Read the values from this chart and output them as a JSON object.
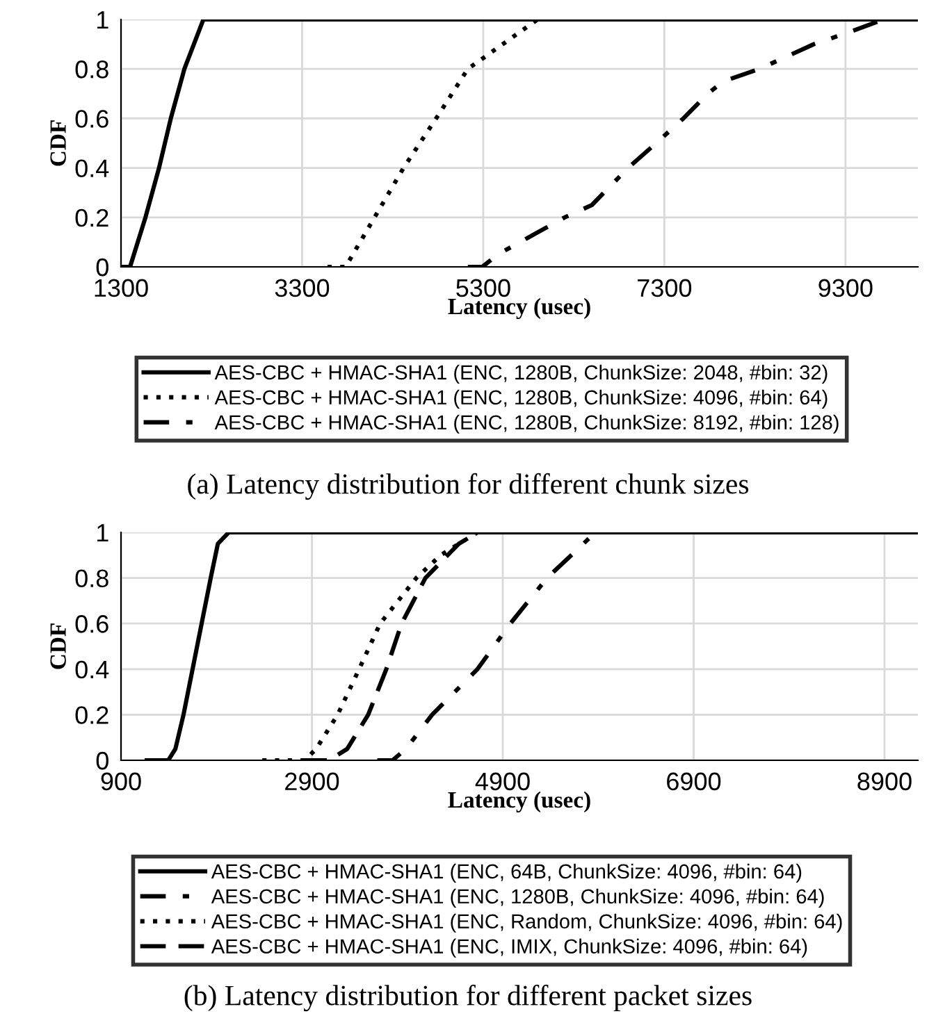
{
  "chart_data": [
    {
      "type": "line",
      "xlabel": "Latency (usec)",
      "ylabel": "CDF",
      "annotations": [
        "(a) Latency distribution for different chunk sizes"
      ],
      "xlim": [
        1300,
        10100
      ],
      "xticks": [
        1300,
        3300,
        5300,
        7300,
        9300
      ],
      "ylim": [
        0,
        1
      ],
      "yticks": [
        0,
        0.2,
        0.4,
        0.6,
        0.8,
        1
      ],
      "grid": true,
      "legend": "bottom",
      "marker": "none",
      "series": [
        {
          "name": "AES-CBC + HMAC-SHA1 (ENC, 1280B, ChunkSize: 2048, #bin: 32)",
          "color": "#000000",
          "line_style": "solid",
          "x": [
            1300,
            1400,
            1570,
            1720,
            1850,
            2000,
            2210,
            10100
          ],
          "values": [
            0,
            0,
            0.2,
            0.4,
            0.6,
            0.8,
            1,
            1
          ]
        },
        {
          "name": "AES-CBC + HMAC-SHA1 (ENC, 1280B, ChunkSize: 4096, #bin: 64)",
          "color": "#000000",
          "line_style": "dotted",
          "x": [
            3580,
            3780,
            4100,
            4420,
            4780,
            5130,
            5900,
            10100
          ],
          "values": [
            0,
            0,
            0.2,
            0.4,
            0.6,
            0.8,
            1,
            1
          ]
        },
        {
          "name": "AES-CBC + HMAC-SHA1 (ENC, 1280B, ChunkSize: 8192, #bin: 128)",
          "color": "#000000",
          "line_style": "dashdot",
          "x": [
            5130,
            5290,
            5460,
            6200,
            6500,
            6900,
            7210,
            7510,
            7780,
            7950,
            8350,
            8950,
            9350,
            9720,
            10100
          ],
          "values": [
            0,
            0,
            0.05,
            0.2,
            0.25,
            0.4,
            0.5,
            0.6,
            0.7,
            0.75,
            0.8,
            0.9,
            0.95,
            1,
            1
          ]
        }
      ]
    },
    {
      "type": "line",
      "xlabel": "Latency (usec)",
      "ylabel": "CDF",
      "annotations": [
        "(b) Latency distribution for different packet sizes"
      ],
      "xlim": [
        900,
        9250
      ],
      "xticks": [
        900,
        2900,
        4900,
        6900,
        8900
      ],
      "ylim": [
        0,
        1
      ],
      "yticks": [
        0,
        0.2,
        0.4,
        0.6,
        0.8,
        1
      ],
      "grid": true,
      "legend": "bottom",
      "marker": "none",
      "series": [
        {
          "name": "AES-CBC + HMAC-SHA1 (ENC, 64B, ChunkSize: 4096, #bin: 64)",
          "color": "#000000",
          "line_style": "solid",
          "x": [
            1170,
            1395,
            1470,
            1555,
            1650,
            1745,
            1840,
            1915,
            2030,
            9250
          ],
          "values": [
            0,
            0,
            0.05,
            0.2,
            0.4,
            0.6,
            0.8,
            0.95,
            1,
            1
          ]
        },
        {
          "name": "AES-CBC + HMAC-SHA1 (ENC, 1280B, ChunkSize: 4096, #bin: 64)",
          "color": "#000000",
          "line_style": "dashdot",
          "x": [
            3585,
            3745,
            3885,
            4160,
            4635,
            4980,
            5365,
            5745,
            5870,
            9250
          ],
          "values": [
            0,
            0,
            0.05,
            0.2,
            0.4,
            0.6,
            0.8,
            0.95,
            1,
            1
          ]
        },
        {
          "name": "AES-CBC + HMAC-SHA1 (ENC, Random, ChunkSize: 4096, #bin: 64)",
          "color": "#000000",
          "line_style": "dotted",
          "x": [
            2380,
            2825,
            2945,
            3170,
            3395,
            3615,
            3995,
            4250,
            4635,
            9250
          ],
          "values": [
            0,
            0,
            0.05,
            0.2,
            0.4,
            0.6,
            0.8,
            0.9,
            1,
            1
          ]
        },
        {
          "name": "AES-CBC + HMAC-SHA1 (ENC, IMIX, ChunkSize: 4096, #bin: 64)",
          "color": "#000000",
          "line_style": "dashed",
          "x": [
            2790,
            3080,
            3270,
            3490,
            3680,
            3840,
            4090,
            4440,
            4635,
            9250
          ],
          "values": [
            0,
            0,
            0.05,
            0.2,
            0.4,
            0.6,
            0.8,
            0.95,
            1,
            1
          ]
        }
      ]
    }
  ]
}
